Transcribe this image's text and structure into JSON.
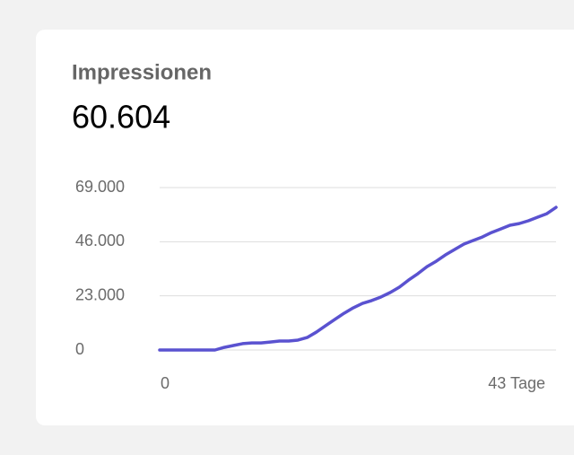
{
  "chart_data": {
    "type": "line",
    "title": "Impressionen",
    "subtitle": "60.604",
    "x": [
      0,
      1,
      2,
      3,
      4,
      5,
      6,
      7,
      8,
      9,
      10,
      11,
      12,
      13,
      14,
      15,
      16,
      17,
      18,
      19,
      20,
      21,
      22,
      23,
      24,
      25,
      26,
      27,
      28,
      29,
      30,
      31,
      32,
      33,
      34,
      35,
      36,
      37,
      38,
      39,
      40,
      41,
      42,
      43
    ],
    "series": [
      {
        "color": "#5a52d0",
        "values": [
          0,
          0,
          0,
          0,
          0,
          0,
          0,
          1100,
          1900,
          2700,
          3000,
          3000,
          3400,
          3800,
          3800,
          4200,
          5300,
          7600,
          10300,
          13000,
          15600,
          17900,
          19800,
          21000,
          22500,
          24400,
          26700,
          29700,
          32400,
          35400,
          37700,
          40400,
          42700,
          45000,
          46500,
          48000,
          49900,
          51400,
          53000,
          53700,
          54900,
          56400,
          57900,
          60604
        ]
      }
    ],
    "xlim": [
      0,
      43
    ],
    "xticks": [
      0,
      {
        "value": 43,
        "label": "43 Tage"
      }
    ],
    "ylim": [
      0,
      69000
    ],
    "yticks": [
      0,
      {
        "value": 23000,
        "label": "23.000"
      },
      {
        "value": 46000,
        "label": "46.000"
      },
      {
        "value": 69000,
        "label": "69.000"
      }
    ],
    "grid": true
  }
}
